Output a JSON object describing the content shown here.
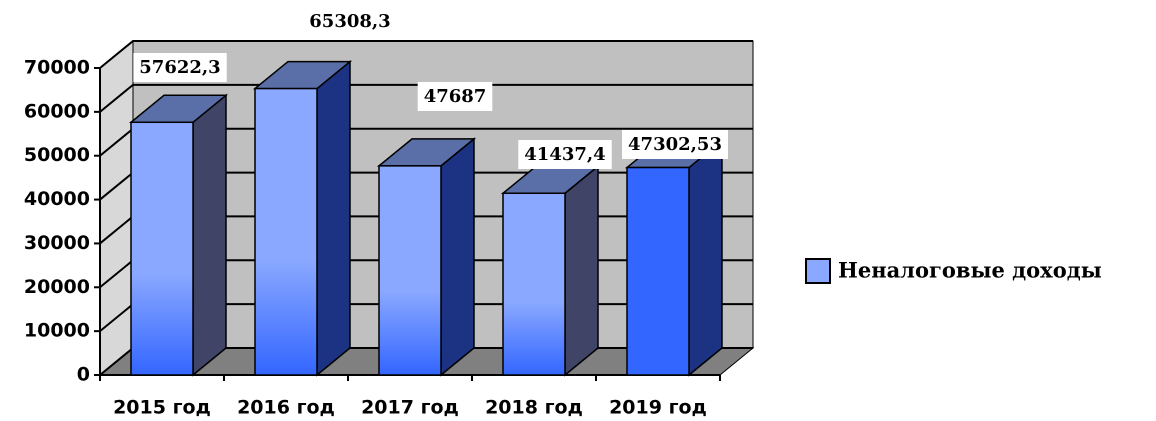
{
  "chart_data": {
    "type": "bar3d",
    "categories": [
      "2015 год",
      "2016 год",
      "2017 год",
      "2018 год",
      "2019 год"
    ],
    "series": [
      {
        "name": "Неналоговые доходы",
        "color": "#8aa8ff",
        "values": [
          57622.3,
          65308.3,
          47687,
          41437.4,
          47302.53
        ],
        "value_labels": [
          "57622,3",
          "65308,3",
          "47687",
          "41437,4",
          "47302,53"
        ],
        "colors": [
          "#8aa8ff",
          "#8aa8ff",
          "#8aa8ff",
          "#8aa8ff",
          "#3366ff"
        ]
      }
    ],
    "ylim": [
      0,
      70000
    ],
    "yticks": [
      0,
      10000,
      20000,
      30000,
      40000,
      50000,
      60000,
      70000
    ],
    "grid": true,
    "legend": "right"
  }
}
